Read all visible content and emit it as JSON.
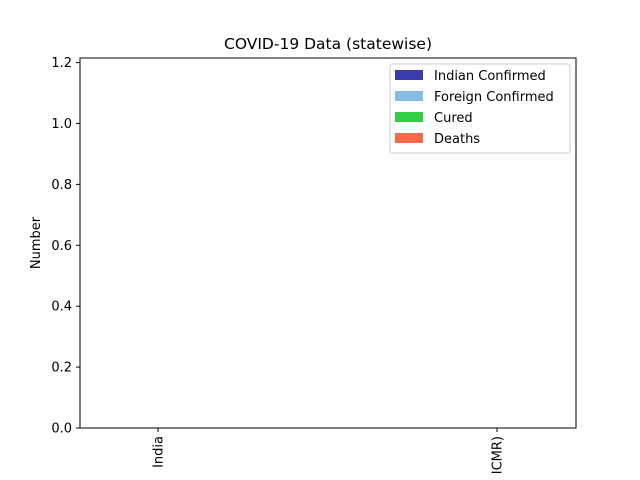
{
  "chart_data": {
    "type": "bar",
    "title": "COVID-19 Data (statewise)",
    "xlabel": "",
    "ylabel": "Number",
    "categories": [
      "India",
      "ICMR)"
    ],
    "series": [
      {
        "name": "Indian Confirmed",
        "color": "#3a3aa8",
        "values": [
          0,
          0
        ]
      },
      {
        "name": "Foreign Confirmed",
        "color": "#86bde3",
        "values": [
          0,
          0
        ]
      },
      {
        "name": "Cured",
        "color": "#35cc46",
        "values": [
          0,
          0
        ]
      },
      {
        "name": "Deaths",
        "color": "#f56a47",
        "values": [
          0,
          0
        ]
      }
    ],
    "ylim": [
      0,
      1.2
    ],
    "yticks": [
      "0.0",
      "0.2",
      "0.4",
      "0.6",
      "0.8",
      "1.0",
      "1.2"
    ],
    "grid": false,
    "legend_position": "top-right"
  }
}
